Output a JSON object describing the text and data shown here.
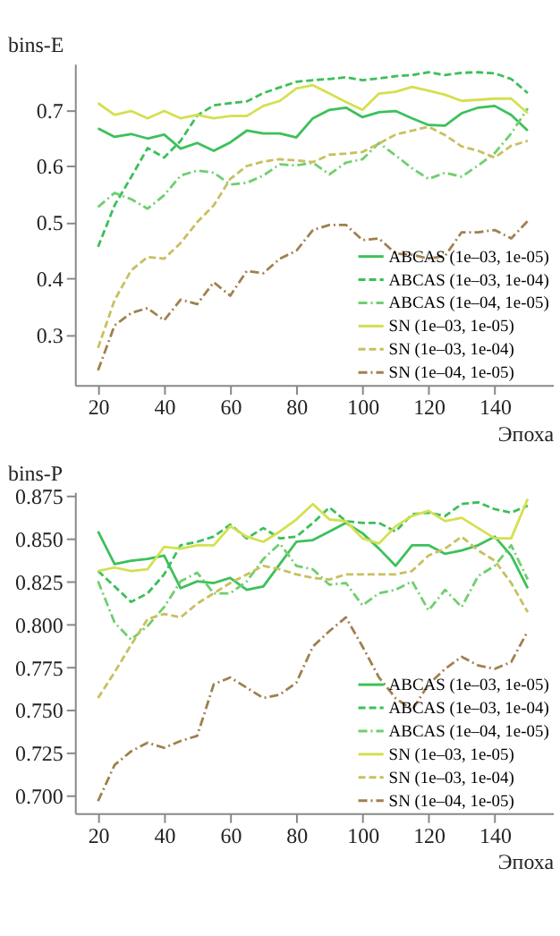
{
  "chart_data": [
    {
      "type": "line",
      "xlabel": "Эпоха",
      "ylabel": "bins-E",
      "xlim": [
        13,
        157.6
      ],
      "ylim": [
        0.21,
        0.782
      ],
      "xticks": [
        20,
        40,
        60,
        80,
        100,
        120,
        140
      ],
      "yticks": [
        0.3,
        0.4,
        0.5,
        0.6,
        0.7
      ],
      "grid": false,
      "legend": "bottom right",
      "marker": "none",
      "x": [
        20,
        25,
        30,
        35,
        40,
        45,
        50,
        55,
        60,
        65,
        70,
        75,
        80,
        85,
        90,
        95,
        100,
        105,
        110,
        115,
        120,
        125,
        130,
        135,
        140,
        145,
        150
      ],
      "series": [
        {
          "name": "ABCAS (1e–03, 1e-05)",
          "color": "#3cc15a",
          "line_style": "solid",
          "values": [
            0.667,
            0.652,
            0.657,
            0.649,
            0.656,
            0.631,
            0.641,
            0.627,
            0.642,
            0.663,
            0.658,
            0.658,
            0.651,
            0.685,
            0.7,
            0.704,
            0.687,
            0.696,
            0.698,
            0.685,
            0.673,
            0.672,
            0.694,
            0.704,
            0.707,
            0.691,
            0.663
          ]
        },
        {
          "name": "ABCAS (1e–03, 1e-04)",
          "color": "#3cbf5a",
          "line_style": "dashed",
          "values": [
            0.456,
            0.53,
            0.58,
            0.632,
            0.615,
            0.645,
            0.69,
            0.708,
            0.712,
            0.715,
            0.73,
            0.74,
            0.75,
            0.753,
            0.755,
            0.758,
            0.753,
            0.756,
            0.76,
            0.762,
            0.767,
            0.762,
            0.766,
            0.767,
            0.765,
            0.755,
            0.73
          ]
        },
        {
          "name": "ABCAS (1e–04, 1e-05)",
          "color": "#6fcf6f",
          "line_style": "dashdot",
          "values": [
            0.527,
            0.552,
            0.541,
            0.524,
            0.548,
            0.583,
            0.592,
            0.588,
            0.567,
            0.57,
            0.583,
            0.603,
            0.601,
            0.606,
            0.585,
            0.606,
            0.612,
            0.641,
            0.619,
            0.596,
            0.577,
            0.588,
            0.581,
            0.601,
            0.623,
            0.658,
            0.703
          ]
        },
        {
          "name": "SN (1e–03, 1e-05)",
          "color": "#d4e050",
          "line_style": "solid",
          "values": [
            0.712,
            0.691,
            0.698,
            0.685,
            0.698,
            0.685,
            0.691,
            0.685,
            0.689,
            0.689,
            0.707,
            0.716,
            0.738,
            0.744,
            0.729,
            0.714,
            0.7,
            0.729,
            0.732,
            0.741,
            0.734,
            0.727,
            0.716,
            0.718,
            0.72,
            0.72,
            0.694
          ]
        },
        {
          "name": "SN (1e–03, 1e-04)",
          "color": "#c8c060",
          "line_style": "dashed",
          "values": [
            0.276,
            0.361,
            0.414,
            0.438,
            0.435,
            0.463,
            0.5,
            0.53,
            0.577,
            0.6,
            0.608,
            0.612,
            0.61,
            0.607,
            0.62,
            0.622,
            0.625,
            0.64,
            0.656,
            0.663,
            0.67,
            0.655,
            0.635,
            0.627,
            0.615,
            0.636,
            0.645
          ]
        },
        {
          "name": "SN (1e–04, 1e-05)",
          "color": "#a08050",
          "line_style": "dashdot",
          "values": [
            0.236,
            0.316,
            0.338,
            0.347,
            0.325,
            0.362,
            0.354,
            0.393,
            0.369,
            0.413,
            0.409,
            0.435,
            0.449,
            0.486,
            0.495,
            0.495,
            0.468,
            0.471,
            0.444,
            0.442,
            0.435,
            0.44,
            0.482,
            0.482,
            0.486,
            0.471,
            0.502
          ]
        }
      ]
    },
    {
      "type": "line",
      "xlabel": "Эпоха",
      "ylabel": "bins-P",
      "xlim": [
        13,
        157.6
      ],
      "ylim": [
        0.69,
        0.877
      ],
      "xticks": [
        20,
        40,
        60,
        80,
        100,
        120,
        140
      ],
      "yticks": [
        {
          "value": 0.7,
          "label": "0.700"
        },
        {
          "value": 0.725,
          "label": "0.725"
        },
        {
          "value": 0.75,
          "label": "0.750"
        },
        {
          "value": 0.775,
          "label": "0.775"
        },
        {
          "value": 0.8,
          "label": "0.800"
        },
        {
          "value": 0.825,
          "label": "0.825"
        },
        {
          "value": 0.85,
          "label": "0.850"
        },
        {
          "value": 0.875,
          "label": "0.875"
        }
      ],
      "grid": false,
      "legend": "bottom right",
      "marker": "none",
      "x": [
        20,
        25,
        30,
        35,
        40,
        45,
        50,
        55,
        60,
        65,
        70,
        75,
        80,
        85,
        90,
        95,
        100,
        105,
        110,
        115,
        120,
        125,
        130,
        135,
        140,
        145,
        150
      ],
      "series": [
        {
          "name": "ABCAS (1e–03, 1e-05)",
          "color": "#3cc15a",
          "line_style": "solid",
          "values": [
            0.854,
            0.835,
            0.837,
            0.838,
            0.84,
            0.821,
            0.825,
            0.824,
            0.827,
            0.82,
            0.822,
            0.835,
            0.848,
            0.849,
            0.854,
            0.859,
            0.853,
            0.844,
            0.834,
            0.846,
            0.846,
            0.841,
            0.843,
            0.846,
            0.851,
            0.84,
            0.821
          ]
        },
        {
          "name": "ABCAS (1e–03, 1e-04)",
          "color": "#3cbf5a",
          "line_style": "dashed",
          "values": [
            0.831,
            0.822,
            0.813,
            0.818,
            0.829,
            0.846,
            0.848,
            0.851,
            0.858,
            0.85,
            0.856,
            0.85,
            0.851,
            0.859,
            0.868,
            0.86,
            0.859,
            0.859,
            0.854,
            0.864,
            0.865,
            0.863,
            0.87,
            0.871,
            0.867,
            0.865,
            0.869
          ]
        },
        {
          "name": "ABCAS (1e–04, 1e-05)",
          "color": "#6fcf6f",
          "line_style": "dashdot",
          "values": [
            0.825,
            0.801,
            0.791,
            0.799,
            0.81,
            0.825,
            0.83,
            0.818,
            0.818,
            0.825,
            0.838,
            0.847,
            0.834,
            0.832,
            0.823,
            0.824,
            0.811,
            0.818,
            0.82,
            0.825,
            0.808,
            0.82,
            0.81,
            0.828,
            0.834,
            0.846,
            0.826
          ]
        },
        {
          "name": "SN (1e–03, 1e-05)",
          "color": "#d4e050",
          "line_style": "solid",
          "values": [
            0.831,
            0.833,
            0.831,
            0.832,
            0.845,
            0.844,
            0.846,
            0.846,
            0.857,
            0.851,
            0.848,
            0.854,
            0.861,
            0.87,
            0.861,
            0.86,
            0.85,
            0.847,
            0.857,
            0.863,
            0.866,
            0.86,
            0.862,
            0.856,
            0.85,
            0.85,
            0.873
          ]
        },
        {
          "name": "SN (1e–03, 1e-04)",
          "color": "#c8c060",
          "line_style": "dashed",
          "values": [
            0.757,
            0.772,
            0.788,
            0.803,
            0.806,
            0.804,
            0.812,
            0.818,
            0.824,
            0.829,
            0.834,
            0.832,
            0.829,
            0.827,
            0.826,
            0.829,
            0.829,
            0.829,
            0.829,
            0.831,
            0.84,
            0.844,
            0.851,
            0.843,
            0.837,
            0.824,
            0.807
          ]
        },
        {
          "name": "SN (1e–04, 1e-05)",
          "color": "#a08050",
          "line_style": "dashdot",
          "values": [
            0.697,
            0.718,
            0.726,
            0.731,
            0.728,
            0.732,
            0.735,
            0.765,
            0.769,
            0.763,
            0.757,
            0.759,
            0.766,
            0.787,
            0.796,
            0.804,
            0.787,
            0.769,
            0.757,
            0.75,
            0.765,
            0.774,
            0.781,
            0.776,
            0.774,
            0.778,
            0.796
          ]
        }
      ]
    }
  ]
}
